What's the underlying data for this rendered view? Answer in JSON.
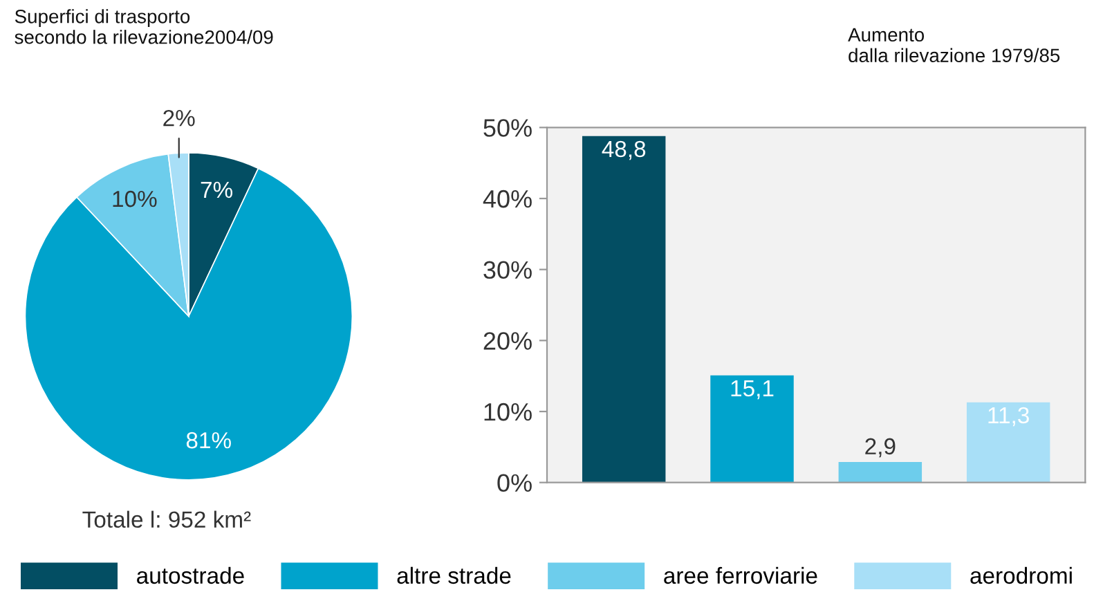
{
  "chart_data": [
    {
      "type": "pie",
      "title": "Superfici di trasporto\nsecondo la rilevazione2004/09",
      "categories": [
        "autostrade",
        "altre strade",
        "aree ferroviarie",
        "aerodromi"
      ],
      "values": [
        7,
        81,
        10,
        2
      ],
      "colors": [
        "#034e63",
        "#00a3cc",
        "#6dcdec",
        "#a8dff7"
      ],
      "value_labels": [
        "7%",
        "81%",
        "10%",
        "2%"
      ],
      "annotations": [
        "Totale l: 952 km²"
      ],
      "legend": "bottom"
    },
    {
      "type": "bar",
      "title": "Aumento\ndalla rilevazione 1979/85",
      "categories": [
        null,
        null,
        null,
        null
      ],
      "values": [
        48.8,
        15.1,
        2.9,
        11.3
      ],
      "colors": [
        "#034e63",
        "#00a3cc",
        "#6dcdec",
        "#a8dff7"
      ],
      "value_labels": [
        "48,8",
        "15,1",
        "2,9",
        "11,3"
      ],
      "ylim": [
        0,
        50
      ],
      "yticks": [
        {
          "value": 0,
          "label": "0%"
        },
        {
          "value": 10,
          "label": "10%"
        },
        {
          "value": 20,
          "label": "20%"
        },
        {
          "value": 30,
          "label": "30%"
        },
        {
          "value": 40,
          "label": "40%"
        },
        {
          "value": 50,
          "label": "50%"
        }
      ],
      "tick_labels": "y",
      "grid": false
    }
  ]
}
